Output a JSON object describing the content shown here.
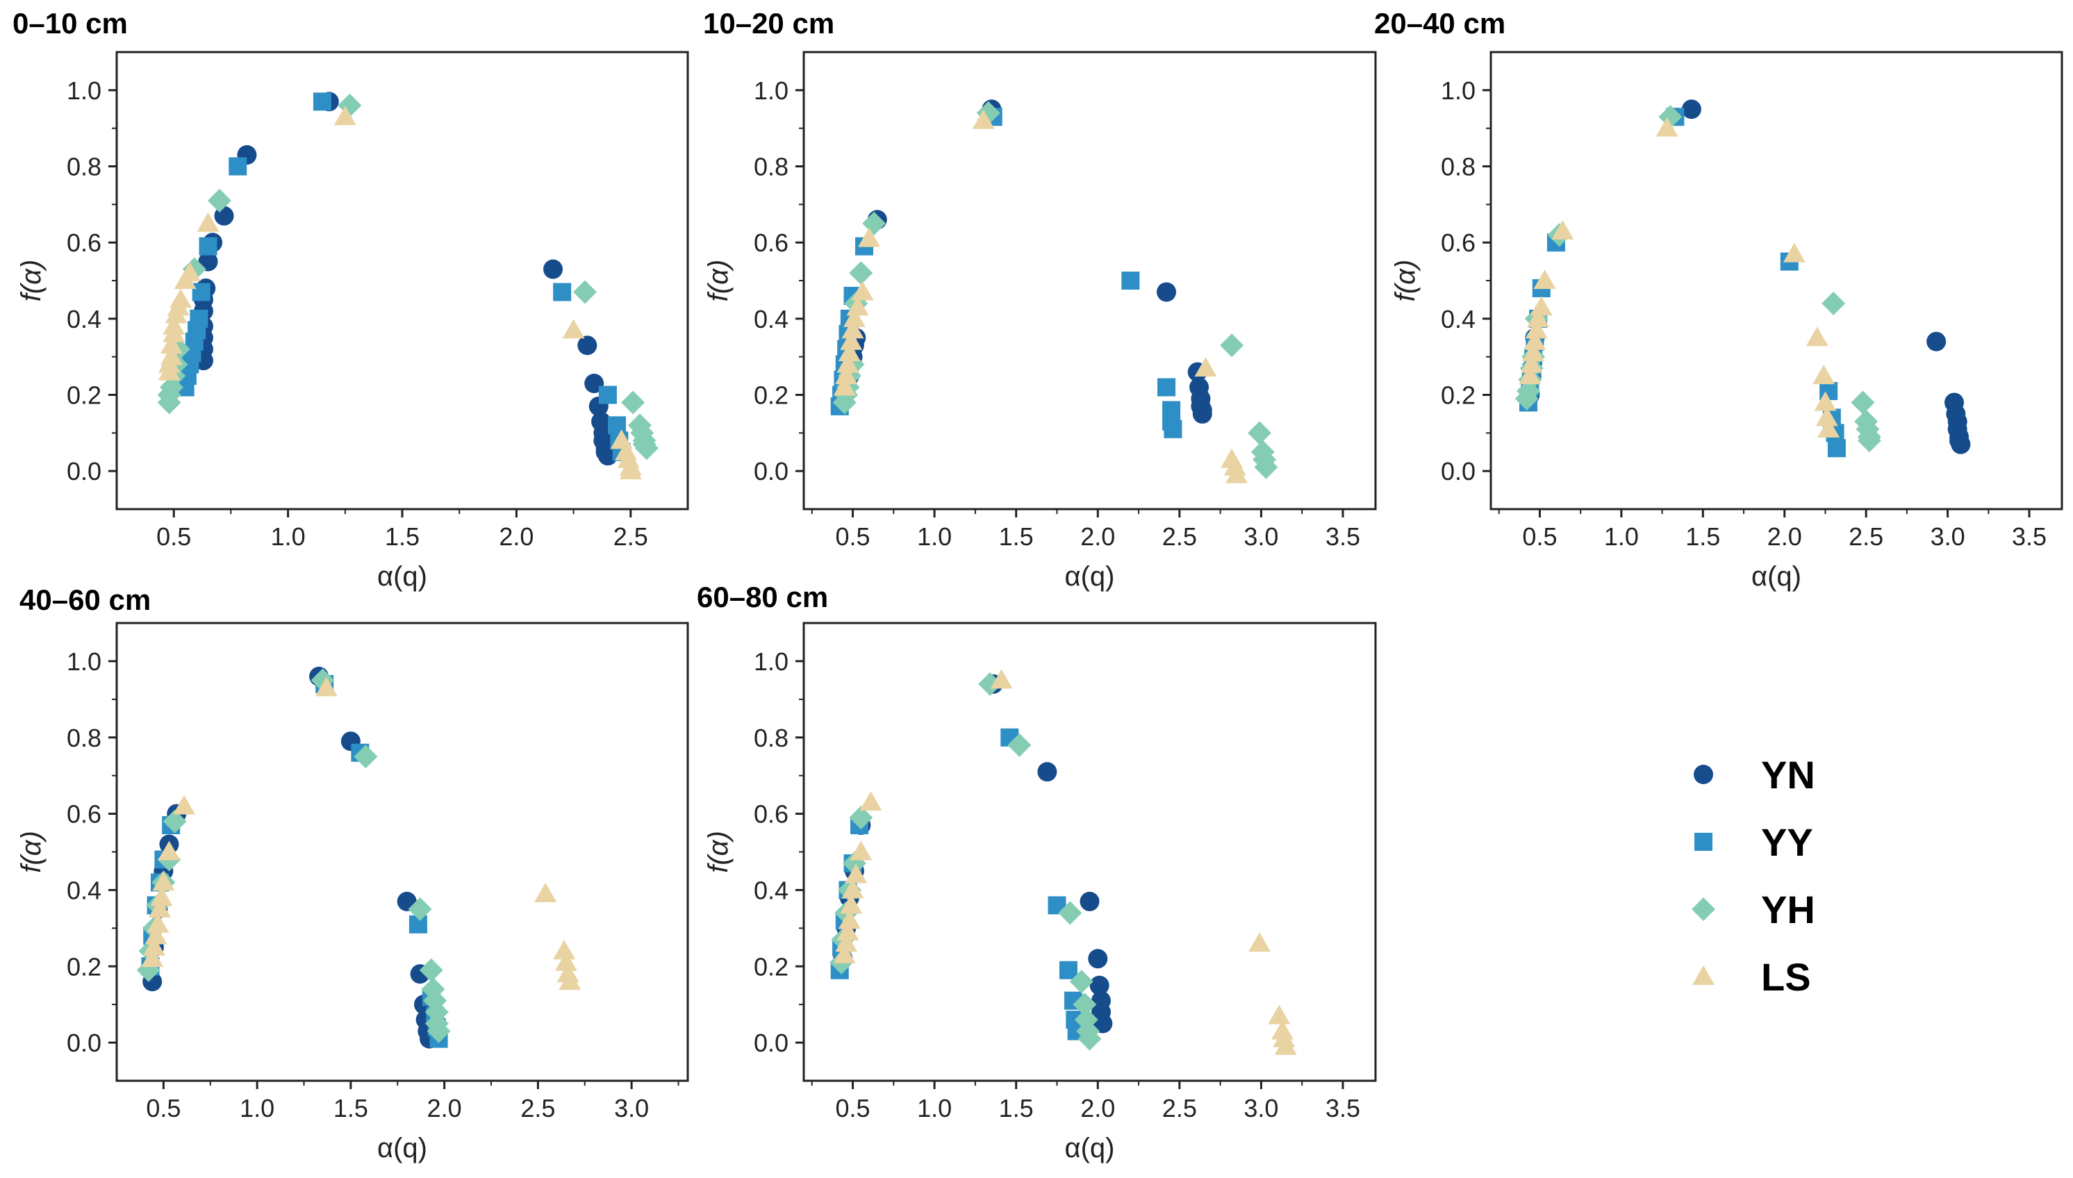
{
  "chart_data": [
    {
      "type": "scatter",
      "title": "0–10 cm",
      "xlabel": "α(q)",
      "ylabel": "f(α)",
      "xlim": [
        0.25,
        2.75
      ],
      "ylim": [
        -0.1,
        1.1
      ],
      "xticks": [
        "0.5",
        "1.0",
        "1.5",
        "2.0",
        "2.5"
      ],
      "yticks": [
        "0.0",
        "0.2",
        "0.4",
        "0.6",
        "0.8",
        "1.0"
      ],
      "series": [
        {
          "name": "YN",
          "x": [
            0.63,
            0.63,
            0.63,
            0.63,
            0.63,
            0.63,
            0.64,
            0.65,
            0.67,
            0.72,
            0.82,
            1.18,
            2.16,
            2.31,
            2.34,
            2.36,
            2.37,
            2.38,
            2.38,
            2.39,
            2.39,
            2.4
          ],
          "y": [
            0.29,
            0.32,
            0.35,
            0.38,
            0.42,
            0.45,
            0.48,
            0.55,
            0.6,
            0.67,
            0.83,
            0.97,
            0.53,
            0.33,
            0.23,
            0.17,
            0.13,
            0.1,
            0.08,
            0.06,
            0.05,
            0.04
          ]
        },
        {
          "name": "YY",
          "x": [
            0.55,
            0.56,
            0.57,
            0.58,
            0.59,
            0.6,
            0.61,
            0.62,
            0.65,
            0.78,
            1.15,
            2.2,
            2.4,
            2.44,
            2.45,
            2.46
          ],
          "y": [
            0.22,
            0.25,
            0.28,
            0.31,
            0.34,
            0.37,
            0.4,
            0.47,
            0.59,
            0.8,
            0.97,
            0.47,
            0.2,
            0.12,
            0.08,
            0.05
          ]
        },
        {
          "name": "YH",
          "x": [
            0.48,
            0.48,
            0.49,
            0.5,
            0.51,
            0.52,
            0.59,
            0.7,
            1.27,
            2.3,
            2.51,
            2.54,
            2.55,
            2.56,
            2.56,
            2.57
          ],
          "y": [
            0.18,
            0.2,
            0.22,
            0.25,
            0.28,
            0.32,
            0.53,
            0.71,
            0.96,
            0.47,
            0.18,
            0.12,
            0.1,
            0.08,
            0.07,
            0.06
          ]
        },
        {
          "name": "LS",
          "x": [
            0.48,
            0.48,
            0.49,
            0.49,
            0.5,
            0.5,
            0.51,
            0.52,
            0.53,
            0.55,
            0.57,
            0.65,
            1.25,
            2.25,
            2.46,
            2.48,
            2.49,
            2.5,
            2.5
          ],
          "y": [
            0.26,
            0.28,
            0.3,
            0.33,
            0.36,
            0.38,
            0.41,
            0.43,
            0.45,
            0.5,
            0.52,
            0.65,
            0.93,
            0.37,
            0.08,
            0.05,
            0.03,
            0.01,
            0.0
          ]
        }
      ]
    },
    {
      "type": "scatter",
      "title": "10–20 cm",
      "xlabel": "α(q)",
      "ylabel": "f(α)",
      "xlim": [
        0.2,
        3.7
      ],
      "ylim": [
        -0.1,
        1.1
      ],
      "xticks": [
        "0.5",
        "1.0",
        "1.5",
        "2.0",
        "2.5",
        "3.0",
        "3.5"
      ],
      "yticks": [
        "0.0",
        "0.2",
        "0.4",
        "0.6",
        "0.8",
        "1.0"
      ],
      "series": [
        {
          "name": "YN",
          "x": [
            0.48,
            0.49,
            0.5,
            0.51,
            0.52,
            0.65,
            1.35,
            2.42,
            2.61,
            2.62,
            2.63,
            2.63,
            2.64,
            2.64
          ],
          "y": [
            0.25,
            0.28,
            0.3,
            0.33,
            0.35,
            0.66,
            0.95,
            0.47,
            0.26,
            0.22,
            0.19,
            0.17,
            0.16,
            0.15
          ]
        },
        {
          "name": "YY",
          "x": [
            0.42,
            0.43,
            0.44,
            0.45,
            0.46,
            0.47,
            0.48,
            0.5,
            0.57,
            1.36,
            2.2,
            2.42,
            2.45,
            2.45,
            2.46
          ],
          "y": [
            0.17,
            0.2,
            0.24,
            0.28,
            0.32,
            0.36,
            0.4,
            0.46,
            0.59,
            0.93,
            0.5,
            0.22,
            0.16,
            0.13,
            0.11
          ]
        },
        {
          "name": "YH",
          "x": [
            0.45,
            0.46,
            0.47,
            0.48,
            0.5,
            0.52,
            0.55,
            0.63,
            1.33,
            2.82,
            2.99,
            3.01,
            3.02,
            3.03
          ],
          "y": [
            0.18,
            0.2,
            0.22,
            0.25,
            0.28,
            0.44,
            0.52,
            0.65,
            0.94,
            0.33,
            0.1,
            0.05,
            0.03,
            0.01
          ]
        },
        {
          "name": "LS",
          "x": [
            0.45,
            0.46,
            0.47,
            0.48,
            0.49,
            0.5,
            0.51,
            0.53,
            0.56,
            0.6,
            1.3,
            2.66,
            2.82,
            2.84,
            2.85
          ],
          "y": [
            0.22,
            0.25,
            0.28,
            0.31,
            0.34,
            0.37,
            0.4,
            0.43,
            0.47,
            0.61,
            0.92,
            0.27,
            0.03,
            0.01,
            -0.01
          ]
        }
      ]
    },
    {
      "type": "scatter",
      "title": "20–40 cm",
      "xlabel": "α(q)",
      "ylabel": "f(α)",
      "xlim": [
        0.2,
        3.7
      ],
      "ylim": [
        -0.1,
        1.1
      ],
      "xticks": [
        "0.5",
        "1.0",
        "1.5",
        "2.0",
        "2.5",
        "3.0",
        "3.5"
      ],
      "yticks": [
        "0.0",
        "0.2",
        "0.4",
        "0.6",
        "0.8",
        "1.0"
      ],
      "series": [
        {
          "name": "YN",
          "x": [
            0.44,
            0.45,
            0.46,
            0.47,
            1.43,
            2.93,
            3.04,
            3.05,
            3.06,
            3.06,
            3.07,
            3.07,
            3.08
          ],
          "y": [
            0.2,
            0.25,
            0.3,
            0.35,
            0.95,
            0.34,
            0.18,
            0.15,
            0.13,
            0.11,
            0.09,
            0.08,
            0.07
          ]
        },
        {
          "name": "YY",
          "x": [
            0.43,
            0.44,
            0.45,
            0.46,
            0.47,
            0.49,
            0.51,
            0.6,
            1.33,
            2.03,
            2.27,
            2.29,
            2.31,
            2.32
          ],
          "y": [
            0.18,
            0.22,
            0.26,
            0.3,
            0.34,
            0.4,
            0.48,
            0.6,
            0.93,
            0.55,
            0.21,
            0.14,
            0.1,
            0.06
          ]
        },
        {
          "name": "YH",
          "x": [
            0.42,
            0.43,
            0.44,
            0.45,
            0.46,
            0.48,
            0.62,
            1.3,
            2.3,
            2.48,
            2.5,
            2.51,
            2.52,
            2.52
          ],
          "y": [
            0.19,
            0.21,
            0.24,
            0.27,
            0.3,
            0.4,
            0.62,
            0.93,
            0.44,
            0.18,
            0.13,
            0.11,
            0.09,
            0.08
          ]
        },
        {
          "name": "LS",
          "x": [
            0.44,
            0.45,
            0.46,
            0.47,
            0.48,
            0.49,
            0.51,
            0.53,
            0.64,
            1.28,
            2.06,
            2.2,
            2.24,
            2.25,
            2.26,
            2.27
          ],
          "y": [
            0.25,
            0.28,
            0.31,
            0.34,
            0.37,
            0.4,
            0.43,
            0.5,
            0.63,
            0.9,
            0.57,
            0.35,
            0.25,
            0.18,
            0.14,
            0.11
          ]
        }
      ]
    },
    {
      "type": "scatter",
      "title": "40–60 cm",
      "xlabel": "α(q)",
      "ylabel": "f(α)",
      "xlim": [
        0.25,
        3.3
      ],
      "ylim": [
        -0.1,
        1.1
      ],
      "xticks": [
        "0.5",
        "1.0",
        "1.5",
        "2.0",
        "2.5",
        "3.0"
      ],
      "yticks": [
        "0.0",
        "0.2",
        "0.4",
        "0.6",
        "0.8",
        "1.0"
      ],
      "series": [
        {
          "name": "YN",
          "x": [
            0.44,
            0.45,
            0.47,
            0.5,
            0.53,
            0.57,
            1.33,
            1.5,
            1.8,
            1.87,
            1.89,
            1.9,
            1.91,
            1.92
          ],
          "y": [
            0.16,
            0.25,
            0.35,
            0.45,
            0.52,
            0.6,
            0.96,
            0.79,
            0.37,
            0.18,
            0.1,
            0.06,
            0.03,
            0.01
          ]
        },
        {
          "name": "YY",
          "x": [
            0.43,
            0.44,
            0.46,
            0.48,
            0.5,
            0.54,
            1.36,
            1.55,
            1.86,
            1.93,
            1.95,
            1.96,
            1.97
          ],
          "y": [
            0.2,
            0.28,
            0.36,
            0.42,
            0.48,
            0.57,
            0.94,
            0.76,
            0.31,
            0.12,
            0.07,
            0.04,
            0.01
          ]
        },
        {
          "name": "YH",
          "x": [
            0.42,
            0.43,
            0.45,
            0.47,
            0.5,
            0.53,
            0.56,
            1.35,
            1.58,
            1.87,
            1.93,
            1.94,
            1.95,
            1.96,
            1.96,
            1.97
          ],
          "y": [
            0.19,
            0.24,
            0.3,
            0.36,
            0.42,
            0.48,
            0.58,
            0.95,
            0.75,
            0.35,
            0.19,
            0.14,
            0.11,
            0.08,
            0.05,
            0.03
          ]
        },
        {
          "name": "LS",
          "x": [
            0.44,
            0.45,
            0.46,
            0.47,
            0.48,
            0.49,
            0.5,
            0.53,
            0.61,
            1.37,
            2.54,
            2.64,
            2.65,
            2.66,
            2.67
          ],
          "y": [
            0.22,
            0.25,
            0.28,
            0.31,
            0.35,
            0.38,
            0.42,
            0.5,
            0.62,
            0.93,
            0.39,
            0.24,
            0.21,
            0.18,
            0.16
          ]
        }
      ]
    },
    {
      "type": "scatter",
      "title": "60–80 cm",
      "xlabel": "α(q)",
      "ylabel": "f(α)",
      "xlim": [
        0.2,
        3.7
      ],
      "ylim": [
        -0.1,
        1.1
      ],
      "xticks": [
        "0.5",
        "1.0",
        "1.5",
        "2.0",
        "2.5",
        "3.0",
        "3.5"
      ],
      "yticks": [
        "0.0",
        "0.2",
        "0.4",
        "0.6",
        "0.8",
        "1.0"
      ],
      "series": [
        {
          "name": "YN",
          "x": [
            0.44,
            0.46,
            0.48,
            0.51,
            0.55,
            1.36,
            1.69,
            1.95,
            2.0,
            2.01,
            2.02,
            2.02,
            2.03
          ],
          "y": [
            0.22,
            0.3,
            0.38,
            0.45,
            0.57,
            0.94,
            0.71,
            0.37,
            0.22,
            0.15,
            0.11,
            0.08,
            0.05
          ]
        },
        {
          "name": "YY",
          "x": [
            0.42,
            0.43,
            0.45,
            0.47,
            0.5,
            0.54,
            1.46,
            1.75,
            1.82,
            1.85,
            1.86,
            1.87
          ],
          "y": [
            0.19,
            0.25,
            0.32,
            0.4,
            0.47,
            0.57,
            0.8,
            0.36,
            0.19,
            0.11,
            0.06,
            0.03
          ]
        },
        {
          "name": "YH",
          "x": [
            0.43,
            0.44,
            0.46,
            0.48,
            0.51,
            0.55,
            1.34,
            1.52,
            1.83,
            1.9,
            1.92,
            1.93,
            1.94,
            1.95
          ],
          "y": [
            0.21,
            0.27,
            0.34,
            0.4,
            0.47,
            0.59,
            0.94,
            0.78,
            0.34,
            0.16,
            0.1,
            0.06,
            0.03,
            0.01
          ]
        },
        {
          "name": "LS",
          "x": [
            0.45,
            0.46,
            0.47,
            0.48,
            0.49,
            0.5,
            0.52,
            0.55,
            0.61,
            1.41,
            2.99,
            3.11,
            3.13,
            3.14,
            3.15
          ],
          "y": [
            0.23,
            0.26,
            0.29,
            0.32,
            0.36,
            0.4,
            0.44,
            0.5,
            0.63,
            0.95,
            0.26,
            0.07,
            0.03,
            0.01,
            -0.01
          ]
        }
      ]
    }
  ],
  "legend": {
    "items": [
      {
        "name": "YN",
        "marker": "circle"
      },
      {
        "name": "YY",
        "marker": "square"
      },
      {
        "name": "YH",
        "marker": "diamond"
      },
      {
        "name": "LS",
        "marker": "triangle"
      }
    ]
  },
  "colors": {
    "YN": "#164b8c",
    "YY": "#2e8fc6",
    "YH": "#84cdb3",
    "LS": "#ead3a2"
  }
}
